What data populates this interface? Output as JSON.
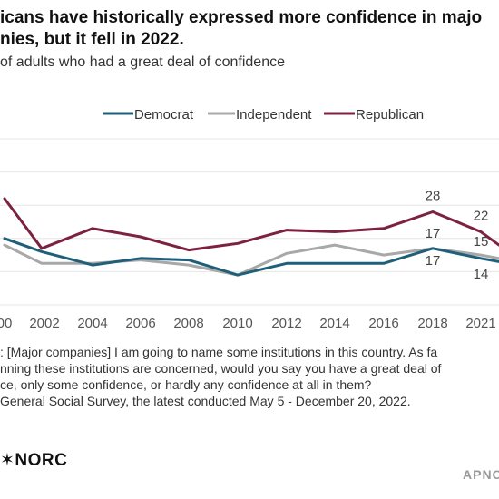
{
  "title": "icans have historically expressed more confidence in majo\nnies, but it fell in 2022.",
  "subtitle": "of adults who had a great deal of confidence",
  "footnote": ": [Major companies] I am going to name some institutions in this country. As fa\nnning these institutions are concerned, would you say you have a great deal of\nce, only some confidence, or hardly any confidence at all in them?\nGeneral Social Survey, the latest conducted May 5 - December 20, 2022.",
  "logo_text": "✶NORC",
  "brand_text": "APNO",
  "colors": {
    "democrat": "#1f5f7a",
    "independent": "#a8a8a8",
    "republican": "#7d2141",
    "grid": "#e6e6e6",
    "axis_text": "#555555",
    "label_text": "#444444"
  },
  "chart_data": {
    "type": "line",
    "x": [
      2000,
      2002,
      2004,
      2006,
      2008,
      2010,
      2012,
      2014,
      2016,
      2018,
      2021,
      2022
    ],
    "x_ticks": [
      "00",
      "2002",
      "2004",
      "2006",
      "2008",
      "2010",
      "2012",
      "2014",
      "2016",
      "2018",
      "2021"
    ],
    "ylim": [
      0,
      50
    ],
    "grid": true,
    "legend_position": "top",
    "series": [
      {
        "name": "Democrat",
        "color_key": "democrat",
        "values": [
          20,
          16,
          12,
          14,
          13.5,
          9,
          12.5,
          12.5,
          12.5,
          17,
          14,
          13
        ]
      },
      {
        "name": "Independent",
        "color_key": "independent",
        "values": [
          18,
          12.5,
          12.5,
          13.5,
          12,
          9,
          15.5,
          18,
          15,
          17,
          15,
          14
        ]
      },
      {
        "name": "Republican",
        "color_key": "republican",
        "values": [
          32,
          17,
          23,
          20.5,
          16.5,
          18.5,
          22.5,
          22,
          23,
          28,
          22,
          18
        ]
      }
    ],
    "data_labels": [
      {
        "series": "Republican",
        "x": 2018,
        "text": "28"
      },
      {
        "series": "Democrat",
        "x": 2018,
        "text": "17"
      },
      {
        "series": "Independent",
        "x": 2018,
        "text": "17"
      },
      {
        "series": "Republican",
        "x": 2021,
        "text": "22"
      },
      {
        "series": "Independent",
        "x": 2021,
        "text": "15"
      },
      {
        "series": "Democrat",
        "x": 2021,
        "text": "14"
      }
    ]
  }
}
